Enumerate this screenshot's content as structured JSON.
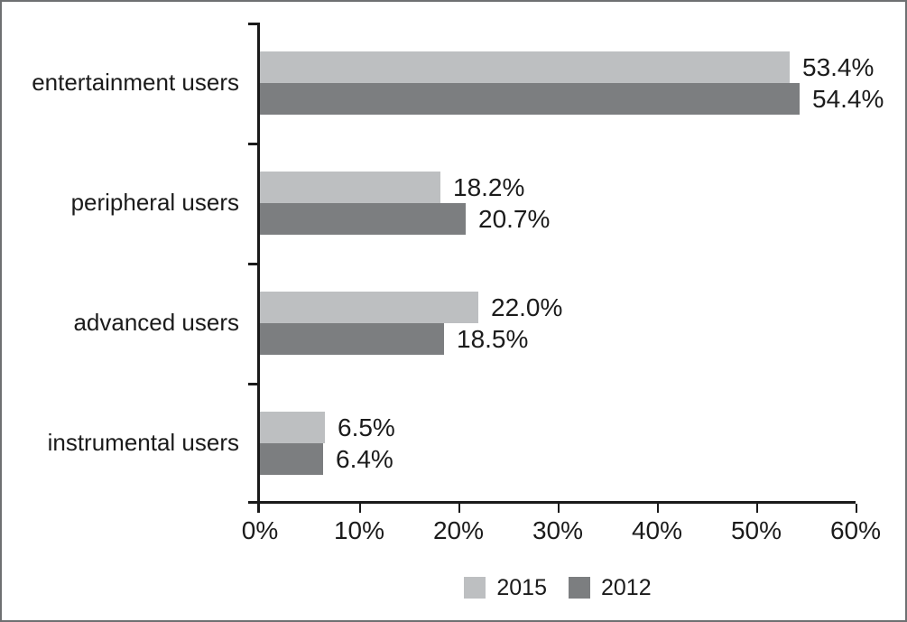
{
  "chart_data": {
    "type": "bar",
    "orientation": "horizontal",
    "title": "",
    "xlabel": "",
    "ylabel": "",
    "categories": [
      "entertainment users",
      "peripheral users",
      "advanced users",
      "instrumental users"
    ],
    "series": [
      {
        "name": "2015",
        "color": "#bdbfc1",
        "values": [
          53.4,
          18.2,
          22.0,
          6.5
        ],
        "labels": [
          "53.4%",
          "18.2%",
          "22.0%",
          "6.5%"
        ]
      },
      {
        "name": "2012",
        "color": "#7c7e80",
        "values": [
          54.4,
          20.7,
          18.5,
          6.4
        ],
        "labels": [
          "54.4%",
          "20.7%",
          "18.5%",
          "6.4%"
        ]
      }
    ],
    "x_ticks": [
      "0%",
      "10%",
      "20%",
      "30%",
      "40%",
      "50%",
      "60%"
    ],
    "xlim": [
      0,
      60
    ],
    "grid": false,
    "legend_position": "bottom",
    "colors": {
      "axis": "#1a1a1a",
      "text": "#1b1b1b",
      "frame_border": "#6e7072",
      "background": "#ffffff",
      "series_2015": "#bdbfc1",
      "series_2012": "#7c7e80"
    }
  }
}
